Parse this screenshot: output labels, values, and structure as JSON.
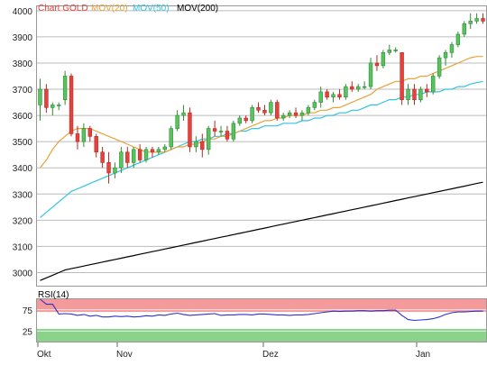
{
  "chart_data": [
    {
      "type": "candlestick",
      "title": "",
      "legend": [
        {
          "label": "Chart GOLD",
          "color": "#e8403a"
        },
        {
          "label": "MOV(20)",
          "color": "#e8a23a"
        },
        {
          "label": "MOV(50)",
          "color": "#33c3e0"
        },
        {
          "label": "MOV(200)",
          "color": "#000000"
        }
      ],
      "legend_placement": "top-left",
      "x_tick_labels": [
        "Okt",
        "Nov",
        "Dez",
        "Jan"
      ],
      "y_tick_labels": [
        "3000",
        "3100",
        "3200",
        "3300",
        "3400",
        "3500",
        "3600",
        "3700",
        "3800",
        "3900",
        "4000"
      ],
      "ylim": [
        2950,
        4020
      ],
      "grid": true,
      "colors": {
        "up": "#59c45f",
        "down": "#e8403a",
        "up_border": "#2f8a35",
        "down_border": "#b52a25"
      },
      "candles": [
        [
          3640,
          3740,
          3580,
          3700
        ],
        [
          3700,
          3720,
          3610,
          3630
        ],
        [
          3630,
          3650,
          3600,
          3640
        ],
        [
          3640,
          3650,
          3620,
          3640
        ],
        [
          3660,
          3770,
          3640,
          3750
        ],
        [
          3750,
          3760,
          3520,
          3530
        ],
        [
          3530,
          3560,
          3470,
          3500
        ],
        [
          3500,
          3570,
          3480,
          3550
        ],
        [
          3550,
          3560,
          3500,
          3520
        ],
        [
          3520,
          3530,
          3440,
          3460
        ],
        [
          3460,
          3480,
          3400,
          3420
        ],
        [
          3420,
          3460,
          3340,
          3380
        ],
        [
          3380,
          3420,
          3360,
          3400
        ],
        [
          3400,
          3480,
          3380,
          3460
        ],
        [
          3460,
          3480,
          3400,
          3420
        ],
        [
          3420,
          3480,
          3400,
          3470
        ],
        [
          3470,
          3490,
          3420,
          3430
        ],
        [
          3430,
          3480,
          3420,
          3470
        ],
        [
          3470,
          3480,
          3440,
          3460
        ],
        [
          3460,
          3480,
          3450,
          3470
        ],
        [
          3470,
          3490,
          3460,
          3480
        ],
        [
          3480,
          3560,
          3470,
          3550
        ],
        [
          3550,
          3620,
          3540,
          3600
        ],
        [
          3600,
          3640,
          3580,
          3610
        ],
        [
          3610,
          3630,
          3460,
          3480
        ],
        [
          3480,
          3520,
          3460,
          3500
        ],
        [
          3500,
          3530,
          3440,
          3470
        ],
        [
          3470,
          3560,
          3450,
          3550
        ],
        [
          3550,
          3580,
          3520,
          3540
        ],
        [
          3540,
          3560,
          3520,
          3540
        ],
        [
          3540,
          3560,
          3500,
          3510
        ],
        [
          3510,
          3580,
          3500,
          3570
        ],
        [
          3570,
          3600,
          3560,
          3590
        ],
        [
          3590,
          3600,
          3570,
          3580
        ],
        [
          3580,
          3640,
          3570,
          3630
        ],
        [
          3630,
          3650,
          3610,
          3620
        ],
        [
          3620,
          3640,
          3600,
          3610
        ],
        [
          3610,
          3660,
          3600,
          3650
        ],
        [
          3650,
          3660,
          3580,
          3590
        ],
        [
          3590,
          3610,
          3580,
          3600
        ],
        [
          3600,
          3620,
          3590,
          3610
        ],
        [
          3610,
          3630,
          3590,
          3600
        ],
        [
          3600,
          3620,
          3580,
          3610
        ],
        [
          3610,
          3640,
          3600,
          3630
        ],
        [
          3630,
          3660,
          3620,
          3650
        ],
        [
          3650,
          3710,
          3630,
          3690
        ],
        [
          3690,
          3700,
          3660,
          3670
        ],
        [
          3670,
          3690,
          3650,
          3680
        ],
        [
          3680,
          3700,
          3660,
          3670
        ],
        [
          3670,
          3720,
          3660,
          3710
        ],
        [
          3710,
          3730,
          3690,
          3700
        ],
        [
          3700,
          3720,
          3690,
          3710
        ],
        [
          3710,
          3730,
          3700,
          3710
        ],
        [
          3710,
          3820,
          3700,
          3800
        ],
        [
          3800,
          3830,
          3770,
          3790
        ],
        [
          3790,
          3850,
          3780,
          3840
        ],
        [
          3840,
          3870,
          3830,
          3850
        ],
        [
          3850,
          3860,
          3840,
          3850
        ],
        [
          3840,
          3840,
          3640,
          3660
        ],
        [
          3660,
          3720,
          3640,
          3700
        ],
        [
          3700,
          3720,
          3640,
          3660
        ],
        [
          3660,
          3710,
          3650,
          3700
        ],
        [
          3700,
          3720,
          3670,
          3690
        ],
        [
          3690,
          3760,
          3680,
          3750
        ],
        [
          3750,
          3830,
          3740,
          3820
        ],
        [
          3820,
          3850,
          3790,
          3840
        ],
        [
          3840,
          3880,
          3820,
          3870
        ],
        [
          3870,
          3920,
          3860,
          3910
        ],
        [
          3910,
          3960,
          3900,
          3950
        ],
        [
          3950,
          3990,
          3930,
          3960
        ],
        [
          3960,
          3990,
          3950,
          3970
        ],
        [
          3970,
          3990,
          3950,
          3960
        ]
      ],
      "mov20": [
        3400,
        3430,
        3470,
        3500,
        3520,
        3540,
        3550,
        3550,
        3550,
        3540,
        3530,
        3520,
        3510,
        3500,
        3490,
        3480,
        3470,
        3460,
        3460,
        3460,
        3460,
        3470,
        3480,
        3480,
        3490,
        3490,
        3500,
        3510,
        3510,
        3520,
        3520,
        3530,
        3540,
        3550,
        3560,
        3570,
        3580,
        3580,
        3590,
        3590,
        3600,
        3600,
        3600,
        3610,
        3610,
        3620,
        3620,
        3630,
        3630,
        3640,
        3650,
        3660,
        3670,
        3680,
        3700,
        3710,
        3720,
        3730,
        3730,
        3740,
        3740,
        3750,
        3750,
        3760,
        3770,
        3780,
        3790,
        3800,
        3810,
        3820,
        3825,
        3825
      ],
      "mov50": [
        3210,
        3230,
        3250,
        3270,
        3290,
        3310,
        3320,
        3330,
        3340,
        3350,
        3360,
        3370,
        3380,
        3390,
        3400,
        3410,
        3420,
        3430,
        3440,
        3450,
        3460,
        3470,
        3480,
        3490,
        3500,
        3500,
        3510,
        3510,
        3520,
        3520,
        3530,
        3530,
        3540,
        3540,
        3550,
        3550,
        3560,
        3560,
        3560,
        3570,
        3570,
        3570,
        3580,
        3580,
        3590,
        3590,
        3600,
        3600,
        3610,
        3610,
        3620,
        3620,
        3630,
        3640,
        3640,
        3650,
        3660,
        3660,
        3670,
        3670,
        3680,
        3680,
        3690,
        3690,
        3690,
        3700,
        3700,
        3710,
        3710,
        3720,
        3725,
        3730
      ],
      "mov200": [
        2970,
        2980,
        2990,
        3000,
        3010,
        3015,
        3020,
        3025,
        3030,
        3035,
        3040,
        3045,
        3050,
        3055,
        3060,
        3065,
        3070,
        3075,
        3080,
        3085,
        3090,
        3095,
        3100,
        3105,
        3110,
        3115,
        3120,
        3125,
        3130,
        3135,
        3140,
        3145,
        3150,
        3155,
        3160,
        3165,
        3170,
        3175,
        3180,
        3185,
        3190,
        3195,
        3200,
        3205,
        3210,
        3215,
        3220,
        3225,
        3230,
        3235,
        3240,
        3245,
        3250,
        3255,
        3260,
        3265,
        3270,
        3275,
        3280,
        3285,
        3290,
        3295,
        3300,
        3305,
        3310,
        3315,
        3320,
        3325,
        3330,
        3335,
        3340,
        3345
      ]
    },
    {
      "type": "line",
      "title": "RSI(14)",
      "ylim": [
        0,
        100
      ],
      "y_tick_labels": [
        "25",
        "75"
      ],
      "bands": [
        {
          "from": 70,
          "to": 100,
          "color": "#f59a9a"
        },
        {
          "from": 0,
          "to": 30,
          "color": "#8bd38b"
        }
      ],
      "series": [
        {
          "values": [
            100,
            88,
            88,
            65,
            66,
            65,
            62,
            64,
            60,
            62,
            58,
            58,
            60,
            59,
            60,
            58,
            59,
            61,
            60,
            63,
            62,
            65,
            67,
            64,
            62,
            63,
            64,
            65,
            66,
            62,
            63,
            63,
            64,
            64,
            63,
            65,
            65,
            64,
            63,
            63,
            62,
            63,
            63,
            64,
            66,
            68,
            70,
            72,
            71,
            72,
            72,
            73,
            73,
            72,
            73,
            73,
            74,
            74,
            62,
            52,
            50,
            51,
            52,
            54,
            58,
            64,
            68,
            70,
            70,
            71,
            72,
            72
          ]
        }
      ]
    }
  ]
}
